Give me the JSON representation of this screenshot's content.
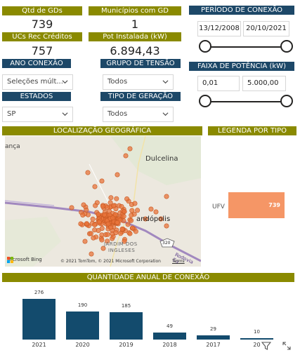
{
  "kpis": {
    "qtd_gds_label": "Qtd de GDs",
    "qtd_gds_value": "739",
    "municipios_label": "Municípios com GD",
    "municipios_value": "1",
    "ucs_label": "UCs Rec Créditos",
    "ucs_value": "757",
    "pot_label": "Pot Instalada (kW)",
    "pot_value": "6.894,43"
  },
  "filters": {
    "ano_conexao_label": "ANO CONEXÃO",
    "ano_conexao_value": "Seleções múlt...",
    "grupo_tensao_label": "GRUPO DE TENSÃO",
    "grupo_tensao_value": "Todos",
    "estados_label": "ESTADOS",
    "estados_value": "SP",
    "tipo_geracao_label": "TIPO DE GERAÇÃO",
    "tipo_geracao_value": "Todos"
  },
  "periodo": {
    "label": "PERÍODO DE CONEXÃO",
    "start": "13/12/2008",
    "end": "20/10/2021"
  },
  "potencia": {
    "label": "FAIXA DE POTÊNCIA (kW)",
    "min": "0,01",
    "max": "5.000,00"
  },
  "map": {
    "title": "LOCALIZAÇÃO GEOGRÁFICA",
    "place_left": "ança",
    "place_dulcelina": "Dulcelina",
    "place_city": "andópolis",
    "place_district_1": "JARDIM DOS",
    "place_district_2": "INGLESES",
    "route": "Rodovia Eu",
    "highway_shield": "320",
    "bing_label": "Microsoft Bing",
    "copyright": "© 2021 TomTom, © 2021 Microsoft Corporation",
    "terms": "Terms"
  },
  "legend": {
    "title": "LEGENDA POR TIPO",
    "item_label": "UFV",
    "item_value": "739",
    "item_color": "#f59666"
  },
  "annual": {
    "title": "QUANTIDADE ANUAL DE CONEXÃO"
  },
  "chart_data": {
    "type": "bar",
    "title": "QUANTIDADE ANUAL DE CONEXÃO",
    "categories": [
      "2021",
      "2020",
      "2019",
      "2018",
      "2017",
      "20"
    ],
    "values": [
      276,
      190,
      185,
      49,
      29,
      10
    ],
    "color": "#134b6d"
  },
  "colors": {
    "header_olive": "#8a8a00",
    "header_navy": "#1d4868",
    "point_orange": "#e8743b"
  },
  "icons": {
    "filter": "filter-icon",
    "focus": "focus-mode-icon"
  }
}
